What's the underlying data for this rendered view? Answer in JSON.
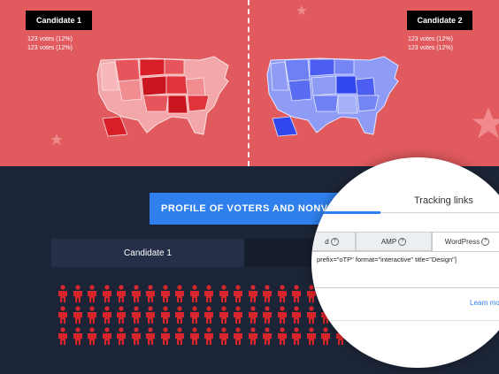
{
  "candidates": [
    {
      "label": "Candidate 1",
      "votes": [
        "123 votes (12%)",
        "123 votes (12%)"
      ],
      "color": "#e0303a"
    },
    {
      "label": "Candidate 2",
      "votes": [
        "123 votes (12%)",
        "123 votes (12%)"
      ],
      "color": "#4a63f2"
    }
  ],
  "profile_button": "PROFILE OF VOTERS AND NONVOTERS",
  "candidate_tab": "Candidate 1",
  "embed_panel": {
    "tab_title": "Tracking links",
    "subtabs": [
      {
        "label": "d",
        "info": false
      },
      {
        "label": "AMP",
        "info": true
      },
      {
        "label": "WordPress",
        "info": true
      }
    ],
    "code": "prefix=\"oTP\" format=\"interactive\" title=\"Design\"]",
    "learn_more": "Learn mo"
  },
  "colors": {
    "top_bg": "#e05a5e",
    "bottom_bg": "#1c2537",
    "accent": "#2f80ed",
    "person": "#d9262c"
  }
}
